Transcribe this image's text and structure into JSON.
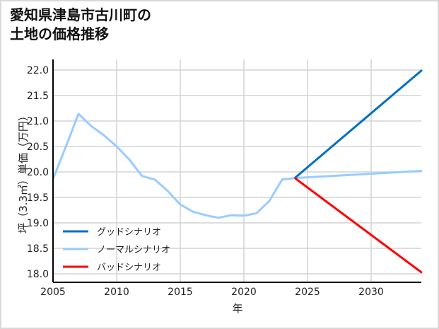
{
  "chart_data": {
    "type": "line",
    "title": "愛知県津島市古川町の\n土地の価格推移",
    "xlabel": "年",
    "ylabel": "坪（3.3㎡）単価（万円）",
    "xlim": [
      2005,
      2034
    ],
    "ylim": [
      17.8,
      22.2
    ],
    "x_ticks": [
      "2005",
      "2010",
      "2015",
      "2020",
      "2025",
      "2030"
    ],
    "y_ticks": [
      "18.0",
      "18.5",
      "19.0",
      "19.5",
      "20.0",
      "20.5",
      "21.0",
      "21.5",
      "22.0"
    ],
    "grid": true,
    "legend_position": "lower left",
    "series": [
      {
        "name": "グッドシナリオ",
        "color": "#0070c0",
        "x": [
          2024,
          2034
        ],
        "values": [
          19.88,
          22.0
        ]
      },
      {
        "name": "ノーマルシナリオ",
        "color": "#99ccff",
        "x": [
          2005,
          2006,
          2007,
          2008,
          2009,
          2010,
          2011,
          2012,
          2013,
          2014,
          2015,
          2016,
          2017,
          2018,
          2019,
          2020,
          2021,
          2022,
          2023,
          2024,
          2034
        ],
        "values": [
          19.86,
          20.49,
          21.14,
          20.9,
          20.72,
          20.5,
          20.24,
          19.92,
          19.85,
          19.63,
          19.36,
          19.22,
          19.15,
          19.1,
          19.15,
          19.14,
          19.19,
          19.43,
          19.85,
          19.88,
          20.02
        ]
      },
      {
        "name": "バッドシナリオ",
        "color": "#ff0000",
        "x": [
          2024,
          2034
        ],
        "values": [
          19.88,
          18.02
        ]
      }
    ]
  },
  "header": {
    "title": "愛知県津島市古川町の\n土地の価格推移"
  },
  "axes": {
    "xlabel": "年",
    "ylabel": "坪（3.3㎡）単価（万円）"
  },
  "legend": [
    {
      "label": "グッドシナリオ",
      "color": "#0070c0"
    },
    {
      "label": "ノーマルシナリオ",
      "color": "#99ccff"
    },
    {
      "label": "バッドシナリオ",
      "color": "#ff0000"
    }
  ]
}
